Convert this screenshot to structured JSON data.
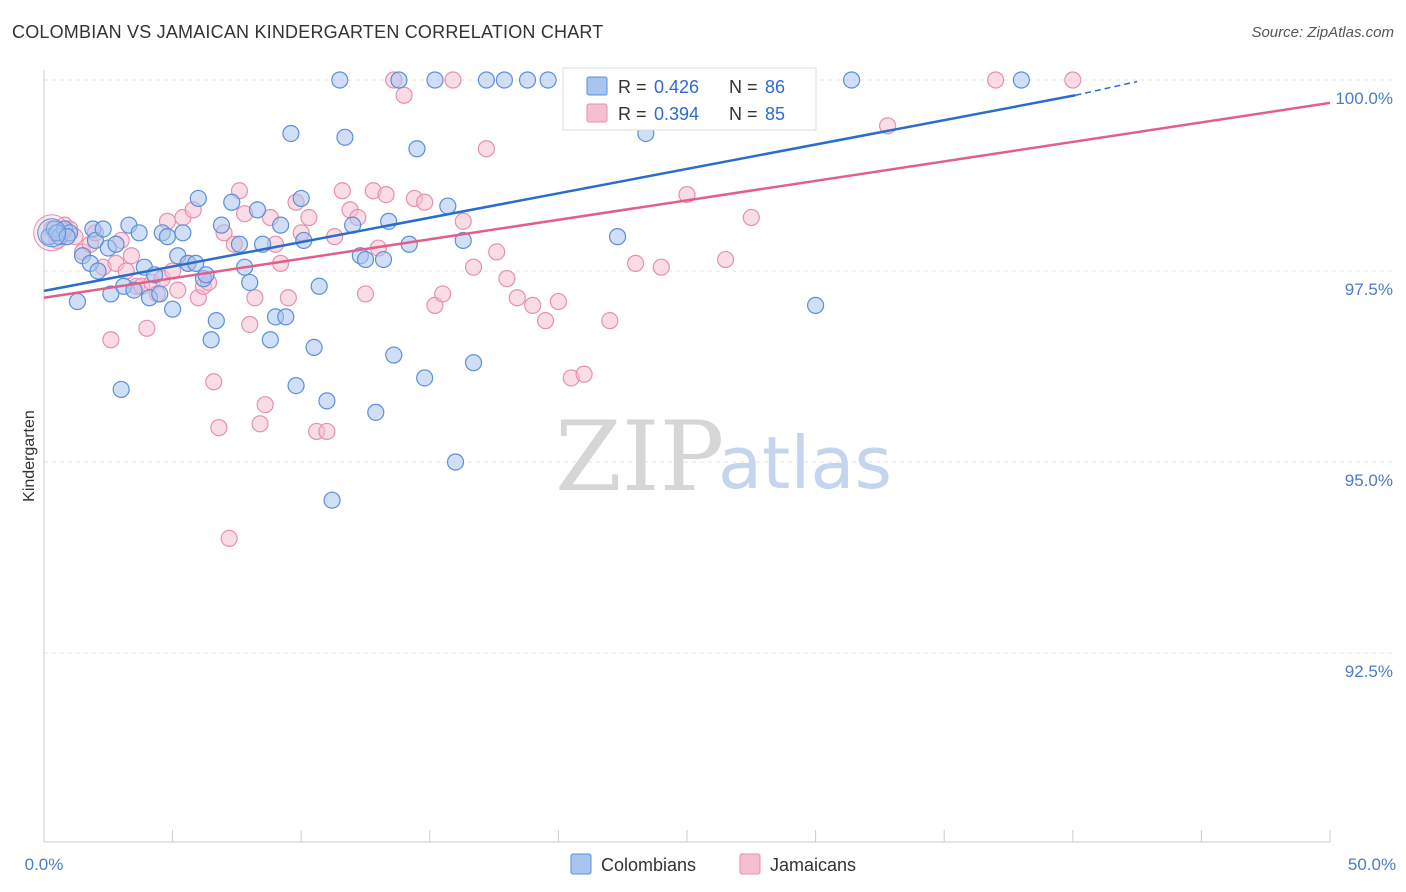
{
  "title": "COLOMBIAN VS JAMAICAN KINDERGARTEN CORRELATION CHART",
  "source": "Source: ZipAtlas.com",
  "watermark": {
    "zip": "ZIP",
    "atlas": "atlas"
  },
  "colors": {
    "colombians_fill": "#a9c4ef",
    "colombians_stroke": "#5b8fd9",
    "colombians_line": "#2a6dcc",
    "jamaicans_fill": "#f6bfd0",
    "jamaicans_stroke": "#e591ad",
    "jamaicans_line": "#e0608c",
    "axis_label": "#4a7cc9"
  },
  "legend": {
    "r_label": "R =",
    "n_label": "N =",
    "colombians": {
      "r": "0.426",
      "n": "86"
    },
    "jamaicans": {
      "r": "0.394",
      "n": "85"
    }
  },
  "chart_data": {
    "type": "scatter",
    "title": "COLOMBIAN VS JAMAICAN KINDERGARTEN CORRELATION CHART",
    "xlabel": "",
    "ylabel": "Kindergarten",
    "xlim": [
      0,
      50
    ],
    "ylim": [
      90.2,
      100.25
    ],
    "x_tick_labels": [
      "0.0%",
      "50.0%"
    ],
    "y_ticks": [
      92.5,
      95.0,
      97.5,
      100.0
    ],
    "y_tick_labels": [
      "92.5%",
      "95.0%",
      "97.5%",
      "100.0%"
    ],
    "series": [
      {
        "name": "Colombians",
        "r": 0.426,
        "n": 86,
        "trend": {
          "x0": 0,
          "y0": 97.24,
          "x1": 40.1,
          "y1": 99.8,
          "dash_x1": 42.5,
          "dash_y1": 99.98
        },
        "points": [
          [
            0.2,
            97.95
          ],
          [
            0.4,
            98.05
          ],
          [
            0.6,
            97.95
          ],
          [
            0.8,
            98.05
          ],
          [
            1.0,
            98.0
          ],
          [
            1.3,
            97.1
          ],
          [
            1.5,
            97.7
          ],
          [
            1.8,
            97.6
          ],
          [
            1.9,
            98.05
          ],
          [
            2.0,
            97.9
          ],
          [
            2.1,
            97.5
          ],
          [
            2.3,
            98.05
          ],
          [
            2.5,
            97.8
          ],
          [
            2.6,
            97.2
          ],
          [
            2.8,
            97.85
          ],
          [
            3.0,
            95.95
          ],
          [
            3.1,
            97.3
          ],
          [
            3.3,
            98.1
          ],
          [
            3.5,
            97.25
          ],
          [
            3.7,
            98.0
          ],
          [
            3.9,
            97.55
          ],
          [
            4.1,
            97.15
          ],
          [
            4.3,
            97.45
          ],
          [
            4.5,
            97.2
          ],
          [
            4.6,
            98.0
          ],
          [
            4.8,
            97.95
          ],
          [
            5.0,
            97.0
          ],
          [
            5.2,
            97.7
          ],
          [
            5.4,
            98.0
          ],
          [
            5.6,
            97.6
          ],
          [
            5.9,
            97.6
          ],
          [
            6.0,
            98.45
          ],
          [
            6.2,
            97.4
          ],
          [
            6.3,
            97.45
          ],
          [
            6.5,
            96.6
          ],
          [
            6.7,
            96.85
          ],
          [
            6.9,
            98.1
          ],
          [
            7.3,
            98.4
          ],
          [
            7.6,
            97.85
          ],
          [
            7.8,
            97.55
          ],
          [
            8.0,
            97.35
          ],
          [
            8.3,
            98.3
          ],
          [
            8.5,
            97.85
          ],
          [
            8.8,
            96.6
          ],
          [
            9.0,
            96.9
          ],
          [
            9.2,
            98.1
          ],
          [
            9.4,
            96.9
          ],
          [
            9.6,
            99.3
          ],
          [
            9.8,
            96.0
          ],
          [
            10.0,
            98.45
          ],
          [
            10.1,
            97.9
          ],
          [
            10.5,
            96.5
          ],
          [
            10.7,
            97.3
          ],
          [
            11.0,
            95.8
          ],
          [
            11.2,
            94.5
          ],
          [
            11.5,
            100.0
          ],
          [
            11.7,
            99.25
          ],
          [
            12.0,
            98.1
          ],
          [
            12.3,
            97.7
          ],
          [
            12.5,
            97.65
          ],
          [
            12.9,
            95.65
          ],
          [
            13.2,
            97.65
          ],
          [
            13.4,
            98.15
          ],
          [
            13.6,
            96.4
          ],
          [
            13.8,
            100.0
          ],
          [
            14.2,
            97.85
          ],
          [
            14.5,
            99.1
          ],
          [
            14.8,
            96.1
          ],
          [
            15.2,
            100.0
          ],
          [
            15.7,
            98.35
          ],
          [
            16.0,
            95.0
          ],
          [
            16.3,
            97.9
          ],
          [
            16.7,
            96.3
          ],
          [
            17.2,
            100.0
          ],
          [
            17.9,
            100.0
          ],
          [
            18.8,
            100.0
          ],
          [
            19.6,
            100.0
          ],
          [
            22.3,
            97.95
          ],
          [
            23.4,
            99.3
          ],
          [
            25.3,
            100.0
          ],
          [
            28.8,
            99.5
          ],
          [
            30.0,
            97.05
          ],
          [
            31.4,
            100.0
          ],
          [
            38.0,
            100.0
          ],
          [
            0.5,
            98.0
          ],
          [
            0.9,
            97.95
          ]
        ]
      },
      {
        "name": "Jamaicans",
        "r": 0.394,
        "n": 85,
        "trend": {
          "x0": 0,
          "y0": 97.15,
          "x1": 50,
          "y1": 99.7
        },
        "points": [
          [
            0.3,
            98.05
          ],
          [
            0.5,
            97.9
          ],
          [
            0.8,
            98.1
          ],
          [
            1.0,
            98.05
          ],
          [
            1.2,
            97.95
          ],
          [
            1.5,
            97.75
          ],
          [
            1.8,
            97.85
          ],
          [
            2.0,
            98.0
          ],
          [
            2.3,
            97.55
          ],
          [
            2.6,
            96.6
          ],
          [
            2.8,
            97.6
          ],
          [
            3.0,
            97.9
          ],
          [
            3.2,
            97.5
          ],
          [
            3.4,
            97.7
          ],
          [
            3.6,
            97.3
          ],
          [
            3.8,
            97.3
          ],
          [
            4.0,
            96.75
          ],
          [
            4.2,
            97.35
          ],
          [
            4.4,
            97.2
          ],
          [
            4.6,
            97.4
          ],
          [
            4.8,
            98.15
          ],
          [
            5.0,
            97.5
          ],
          [
            5.2,
            97.25
          ],
          [
            5.4,
            98.2
          ],
          [
            5.6,
            97.6
          ],
          [
            5.8,
            98.3
          ],
          [
            6.0,
            97.15
          ],
          [
            6.2,
            97.3
          ],
          [
            6.4,
            97.35
          ],
          [
            6.6,
            96.05
          ],
          [
            6.8,
            95.45
          ],
          [
            7.0,
            98.0
          ],
          [
            7.2,
            94.0
          ],
          [
            7.4,
            97.85
          ],
          [
            7.6,
            98.55
          ],
          [
            7.8,
            98.25
          ],
          [
            8.0,
            96.8
          ],
          [
            8.2,
            97.15
          ],
          [
            8.4,
            95.5
          ],
          [
            8.6,
            95.75
          ],
          [
            8.8,
            98.2
          ],
          [
            9.0,
            97.85
          ],
          [
            9.2,
            97.6
          ],
          [
            9.5,
            97.15
          ],
          [
            9.8,
            98.4
          ],
          [
            10.0,
            98.0
          ],
          [
            10.3,
            98.2
          ],
          [
            10.6,
            95.4
          ],
          [
            11.0,
            95.4
          ],
          [
            11.3,
            97.95
          ],
          [
            11.6,
            98.55
          ],
          [
            11.9,
            98.3
          ],
          [
            12.2,
            98.2
          ],
          [
            12.5,
            97.2
          ],
          [
            12.8,
            98.55
          ],
          [
            13.0,
            97.8
          ],
          [
            13.3,
            98.5
          ],
          [
            13.6,
            100.0
          ],
          [
            14.0,
            99.8
          ],
          [
            14.4,
            98.45
          ],
          [
            14.8,
            98.4
          ],
          [
            15.2,
            97.05
          ],
          [
            15.5,
            97.2
          ],
          [
            15.9,
            100.0
          ],
          [
            16.3,
            98.15
          ],
          [
            16.7,
            97.55
          ],
          [
            17.2,
            99.1
          ],
          [
            17.6,
            97.75
          ],
          [
            18.0,
            97.4
          ],
          [
            18.4,
            97.15
          ],
          [
            19.0,
            97.05
          ],
          [
            19.5,
            96.85
          ],
          [
            20.0,
            97.1
          ],
          [
            20.5,
            96.1
          ],
          [
            21.0,
            96.15
          ],
          [
            22.0,
            96.85
          ],
          [
            23.0,
            97.6
          ],
          [
            24.0,
            97.55
          ],
          [
            25.0,
            98.5
          ],
          [
            26.5,
            97.65
          ],
          [
            27.5,
            98.2
          ],
          [
            32.8,
            99.4
          ],
          [
            37.0,
            100.0
          ],
          [
            40.0,
            100.0
          ],
          [
            25.6,
            100.0
          ]
        ]
      }
    ],
    "legend": [
      {
        "label": "Colombians",
        "position": "bottom-center"
      },
      {
        "label": "Jamaicans",
        "position": "bottom-center"
      }
    ],
    "grid": true
  }
}
